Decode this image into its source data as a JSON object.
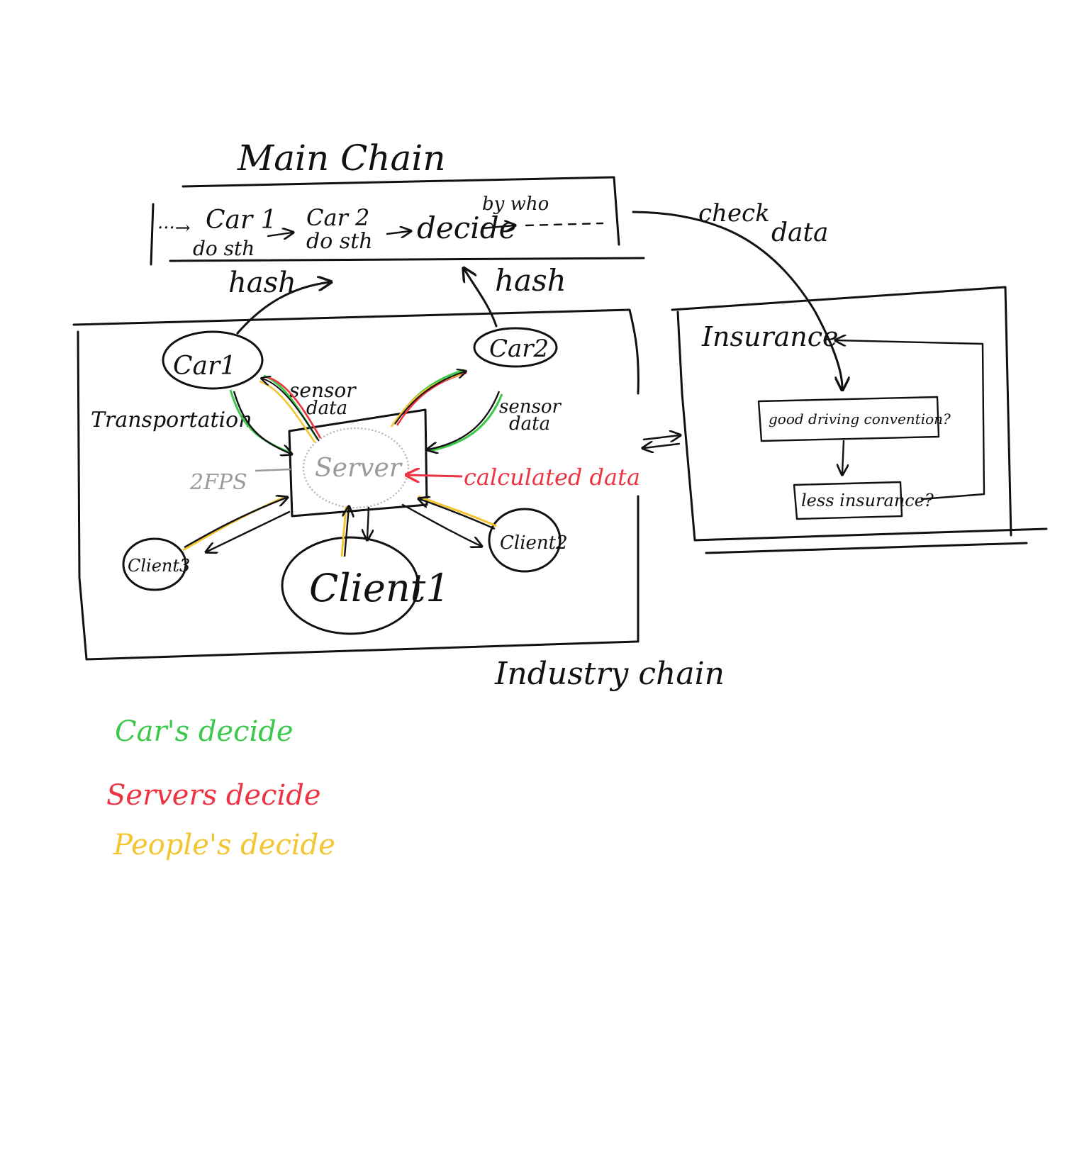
{
  "main_chain": {
    "title": "Main Chain",
    "start_marker": "···→",
    "car1_top": "Car 1",
    "car1_bottom": "do sth",
    "car2_top": "Car 2",
    "car2_bottom": "do sth",
    "decide": "decide",
    "by_who": "by who",
    "hash_left": "hash",
    "hash_right": "hash"
  },
  "check_data": {
    "check": "check",
    "data": "data"
  },
  "industry_chain": {
    "title": "Industry chain",
    "transportation": "Transportation",
    "car1": "Car1",
    "car2": "Car2",
    "sensor_data_left_1": "sensor",
    "sensor_data_left_2": "data",
    "sensor_data_right_1": "sensor",
    "sensor_data_right_2": "data",
    "server": "Server",
    "fps": "2FPS",
    "calculated_data": "calculated data",
    "client1": "Client1",
    "client2": "Client2",
    "client3": "Client3"
  },
  "insurance": {
    "title": "Insurance",
    "question1": "good driving convention?",
    "question2": "less insurance?"
  },
  "legend": [
    {
      "label": "Car's decide",
      "color": "#3cc84a"
    },
    {
      "label": "Servers decide",
      "color": "#ee3342"
    },
    {
      "label": "People's decide",
      "color": "#f2c531"
    }
  ],
  "colors": {
    "ink": "#111111",
    "server_grey": "#9a9a9a",
    "calculated_red": "#ee3342",
    "car_green": "#3cc84a",
    "people_yellow": "#f2c531"
  }
}
